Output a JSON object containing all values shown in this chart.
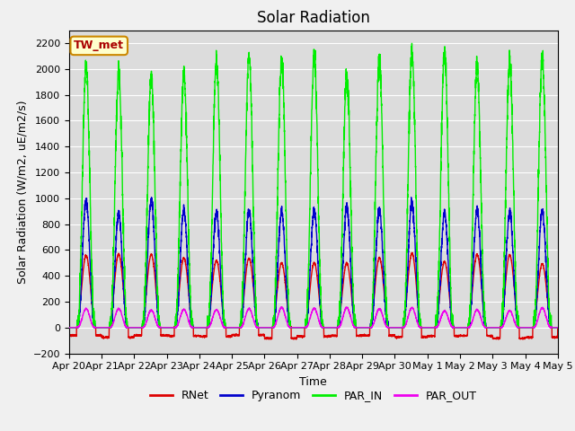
{
  "title": "Solar Radiation",
  "ylabel": "Solar Radiation (W/m2, uE/m2/s)",
  "xlabel": "Time",
  "ylim": [
    -200,
    2300
  ],
  "yticks": [
    -200,
    0,
    200,
    400,
    600,
    800,
    1000,
    1200,
    1400,
    1600,
    1800,
    2000,
    2200
  ],
  "date_labels": [
    "Apr 20",
    "Apr 21",
    "Apr 22",
    "Apr 23",
    "Apr 24",
    "Apr 25",
    "Apr 26",
    "Apr 27",
    "Apr 28",
    "Apr 29",
    "Apr 30",
    "May 1",
    "May 2",
    "May 3",
    "May 4",
    "May 5"
  ],
  "num_days": 15,
  "points_per_day": 288,
  "RNet_peak": 580,
  "RNet_night": -70,
  "Pyranom_peak": 970,
  "PAR_IN_peak": 2100,
  "PAR_OUT_peak": 150,
  "colors": {
    "RNet": "#dd0000",
    "Pyranom": "#0000cc",
    "PAR_IN": "#00ee00",
    "PAR_OUT": "#ee00ee"
  },
  "station_label": "TW_met",
  "station_box_facecolor": "#ffffcc",
  "station_box_edgecolor": "#cc8800",
  "background_color": "#dcdcdc",
  "fig_facecolor": "#f0f0f0",
  "grid_color": "#ffffff",
  "title_fontsize": 12,
  "label_fontsize": 9,
  "tick_fontsize": 8,
  "legend_fontsize": 9,
  "line_width": 1.0
}
